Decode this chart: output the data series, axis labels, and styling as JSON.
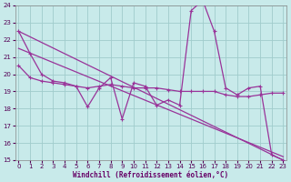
{
  "xlabel": "Windchill (Refroidissement éolien,°C)",
  "bg_color": "#c8eaea",
  "line_color": "#993399",
  "grid_color": "#a0cccc",
  "xlim": [
    0,
    23
  ],
  "ylim": [
    15,
    24
  ],
  "yticks": [
    15,
    16,
    17,
    18,
    19,
    20,
    21,
    22,
    23,
    24
  ],
  "xticks": [
    0,
    1,
    2,
    3,
    4,
    5,
    6,
    7,
    8,
    9,
    10,
    11,
    12,
    13,
    14,
    15,
    16,
    17,
    18,
    19,
    20,
    21,
    22,
    23
  ],
  "line1_x": [
    0,
    1,
    2,
    3,
    4,
    5,
    6,
    7,
    8,
    9,
    10,
    11,
    12,
    13,
    14,
    15,
    16,
    17,
    18,
    19,
    20,
    21,
    22,
    23
  ],
  "line1_y": [
    22.5,
    21.2,
    20.0,
    19.6,
    19.5,
    19.3,
    18.1,
    19.2,
    19.8,
    17.4,
    19.5,
    19.3,
    18.2,
    18.5,
    18.2,
    23.7,
    24.3,
    22.5,
    19.2,
    18.8,
    19.2,
    19.3,
    15.3,
    15.0
  ],
  "line2_x": [
    0,
    1,
    2,
    3,
    4,
    5,
    6,
    7,
    8,
    9,
    10,
    11,
    12,
    13,
    14,
    15,
    16,
    17,
    18,
    19,
    20,
    21,
    22,
    23
  ],
  "line2_y": [
    20.5,
    19.8,
    19.6,
    19.5,
    19.4,
    19.3,
    19.2,
    19.3,
    19.4,
    19.3,
    19.2,
    19.2,
    19.2,
    19.1,
    19.0,
    19.0,
    19.0,
    19.0,
    18.8,
    18.7,
    18.7,
    18.8,
    18.9,
    18.9
  ],
  "trend1_x": [
    0,
    23
  ],
  "trend1_y": [
    21.5,
    15.2
  ],
  "trend2_x": [
    0,
    23
  ],
  "trend2_y": [
    22.5,
    15.0
  ]
}
